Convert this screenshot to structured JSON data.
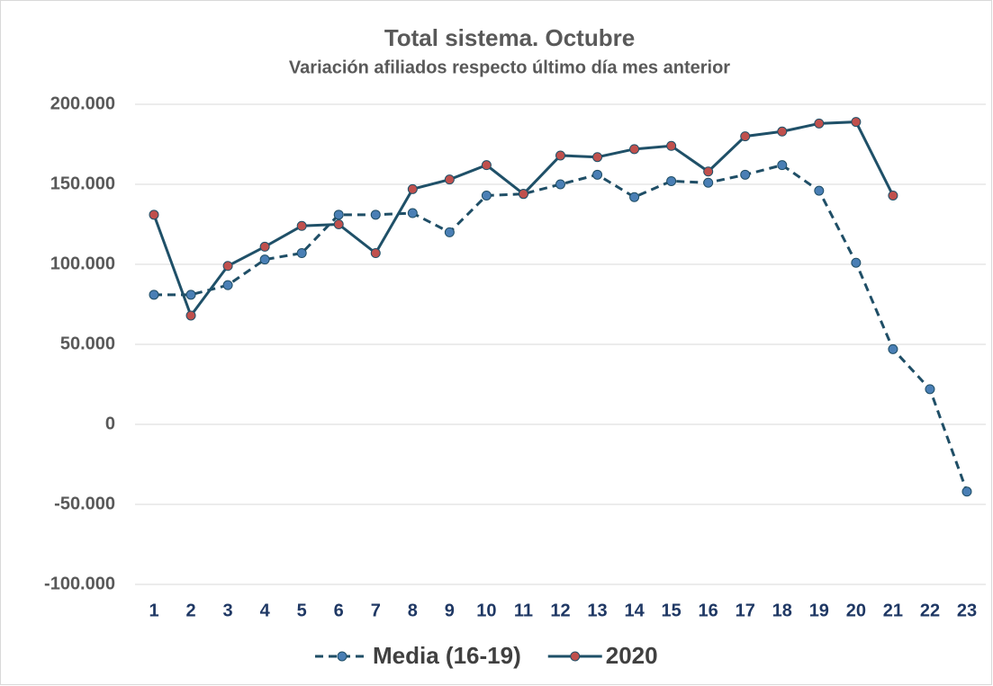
{
  "chart_data": {
    "type": "line",
    "title": "Total sistema. Octubre",
    "subtitle": "Variación afiliados respecto último día mes anterior",
    "categories": [
      "1",
      "2",
      "3",
      "4",
      "5",
      "6",
      "7",
      "8",
      "9",
      "10",
      "11",
      "12",
      "13",
      "14",
      "15",
      "16",
      "17",
      "18",
      "19",
      "20",
      "21",
      "22",
      "23"
    ],
    "series": [
      {
        "name": "Media (16-19)",
        "color": "#1f4e66",
        "marker_color": "#4a7fb5",
        "dashed": true,
        "values": [
          81000,
          81000,
          87000,
          103000,
          107000,
          131000,
          131000,
          132000,
          120000,
          143000,
          144000,
          150000,
          156000,
          142000,
          152000,
          151000,
          156000,
          162000,
          146000,
          101000,
          47000,
          22000,
          -42000
        ]
      },
      {
        "name": "2020",
        "color": "#1f5068",
        "marker_color": "#c0504d",
        "dashed": false,
        "values": [
          131000,
          68000,
          99000,
          111000,
          124000,
          125000,
          107000,
          147000,
          153000,
          162000,
          144000,
          168000,
          167000,
          172000,
          174000,
          158000,
          180000,
          183000,
          188000,
          189000,
          143000,
          null,
          null
        ]
      }
    ],
    "ylim": [
      -100000,
      200000
    ],
    "yticks": [
      {
        "value": -100000,
        "label": "-100.000"
      },
      {
        "value": -50000,
        "label": "-50.000"
      },
      0,
      {
        "value": 50000,
        "label": "50.000"
      },
      {
        "value": 100000,
        "label": "100.000"
      },
      {
        "value": 150000,
        "label": "150.000"
      },
      {
        "value": 200000,
        "label": "200.000"
      }
    ],
    "grid": true,
    "legend": "bottom"
  }
}
